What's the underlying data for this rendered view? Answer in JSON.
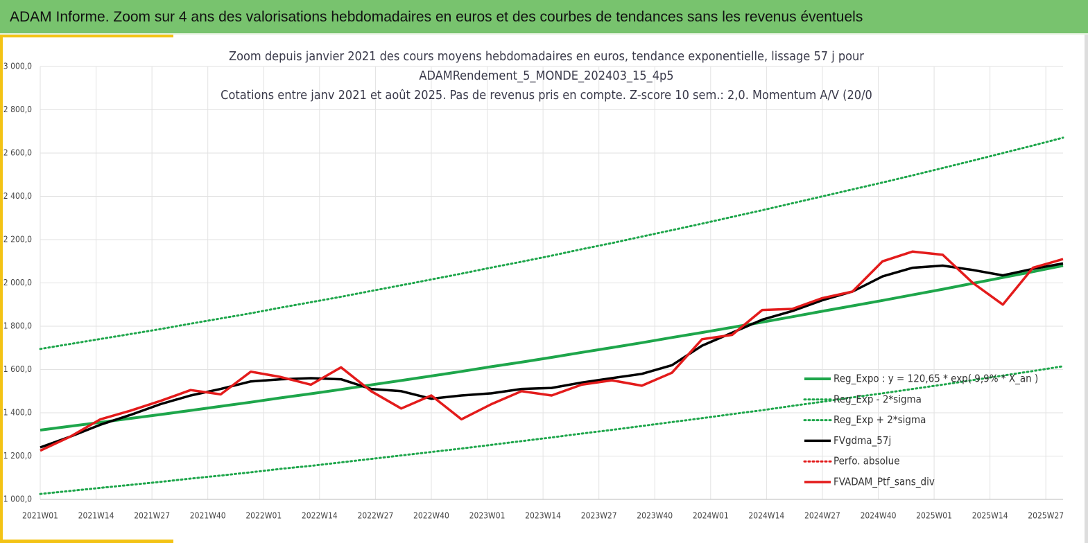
{
  "header": {
    "title": "ADAM Informe. Zoom sur 4 ans des valorisations hebdomadaires en euros et des courbes de tendances sans les revenus éventuels"
  },
  "chart_data": {
    "type": "line",
    "title": [
      "Zoom depuis janvier 2021 des cours moyens hebdomadaires  en euros, tendance exponentielle, lissage 57 j pour",
      "ADAMRendement_5_MONDE_202403_15_4p5",
      "Cotations entre janv 2021 et août 2025. Pas de revenus pris en compte. Z-score 10 sem.: 2,0. Momentum A/V (20/0"
    ],
    "x": [
      0,
      7,
      14,
      21,
      28,
      35,
      42,
      49,
      56,
      63,
      70,
      77,
      84,
      91,
      98,
      105,
      112,
      119,
      126,
      133,
      140,
      147,
      154,
      161,
      168,
      175,
      182,
      189,
      196,
      203,
      210,
      217,
      224,
      231,
      238
    ],
    "xlim": [
      0,
      238
    ],
    "xticks": [
      {
        "value": 0,
        "label": "2021W01"
      },
      {
        "value": 13,
        "label": "2021W14"
      },
      {
        "value": 26,
        "label": "2021W27"
      },
      {
        "value": 39,
        "label": "2021W40"
      },
      {
        "value": 52,
        "label": "2022W01"
      },
      {
        "value": 65,
        "label": "2022W14"
      },
      {
        "value": 78,
        "label": "2022W27"
      },
      {
        "value": 91,
        "label": "2022W40"
      },
      {
        "value": 104,
        "label": "2023W01"
      },
      {
        "value": 117,
        "label": "2023W14"
      },
      {
        "value": 130,
        "label": "2023W27"
      },
      {
        "value": 143,
        "label": "2023W40"
      },
      {
        "value": 156,
        "label": "2024W01"
      },
      {
        "value": 169,
        "label": "2024W14"
      },
      {
        "value": 182,
        "label": "2024W27"
      },
      {
        "value": 195,
        "label": "2024W40"
      },
      {
        "value": 208,
        "label": "2025W01"
      },
      {
        "value": 221,
        "label": "2025W14"
      },
      {
        "value": 234,
        "label": "2025W27"
      }
    ],
    "ylim": [
      1000,
      3000
    ],
    "yticks": [
      {
        "value": 1000,
        "label": "1 000,0"
      },
      {
        "value": 1200,
        "label": "1 200,0"
      },
      {
        "value": 1400,
        "label": "1 400,0"
      },
      {
        "value": 1600,
        "label": "1 600,0"
      },
      {
        "value": 1800,
        "label": "1 800,0"
      },
      {
        "value": 2000,
        "label": "2 000,0"
      },
      {
        "value": 2200,
        "label": "2 200,0"
      },
      {
        "value": 2400,
        "label": "2 400,0"
      },
      {
        "value": 2600,
        "label": "2 600,0"
      },
      {
        "value": 2800,
        "label": "2 800,0"
      },
      {
        "value": 3000,
        "label": "3 000,0"
      }
    ],
    "grid": true,
    "series": [
      {
        "name": "Reg_Expo : y = 120,65 * exp( 9,9% * X_an )",
        "color": "#1ea64b",
        "style": "solid",
        "values": [
          1320,
          1338,
          1356,
          1374,
          1392,
          1411,
          1430,
          1449,
          1469,
          1488,
          1508,
          1529,
          1549,
          1570,
          1591,
          1613,
          1634,
          1656,
          1679,
          1701,
          1724,
          1748,
          1771,
          1795,
          1819,
          1844,
          1869,
          1894,
          1919,
          1945,
          1971,
          1998,
          2025,
          2052,
          2080
        ]
      },
      {
        "name": "Reg_Exp - 2*sigma",
        "color": "#1ea64b",
        "style": "dotted",
        "values": [
          1025,
          1039,
          1053,
          1067,
          1081,
          1096,
          1110,
          1125,
          1141,
          1155,
          1171,
          1187,
          1203,
          1219,
          1235,
          1252,
          1269,
          1286,
          1304,
          1321,
          1339,
          1357,
          1375,
          1394,
          1412,
          1432,
          1451,
          1471,
          1490,
          1510,
          1530,
          1551,
          1572,
          1593,
          1615
        ]
      },
      {
        "name": "Reg_Exp + 2*sigma",
        "color": "#1ea64b",
        "style": "dotted",
        "values": [
          1695,
          1718,
          1741,
          1764,
          1787,
          1812,
          1836,
          1860,
          1886,
          1911,
          1936,
          1963,
          1989,
          2016,
          2043,
          2071,
          2098,
          2126,
          2156,
          2184,
          2214,
          2244,
          2274,
          2305,
          2336,
          2368,
          2400,
          2432,
          2464,
          2497,
          2531,
          2565,
          2600,
          2635,
          2671
        ]
      },
      {
        "name": "FVgdma_57j",
        "color": "#000000",
        "style": "solid",
        "values": [
          1240,
          1290,
          1345,
          1390,
          1440,
          1480,
          1510,
          1545,
          1555,
          1560,
          1555,
          1510,
          1500,
          1465,
          1480,
          1490,
          1510,
          1515,
          1540,
          1560,
          1580,
          1620,
          1710,
          1770,
          1830,
          1870,
          1920,
          1960,
          2030,
          2070,
          2080,
          2060,
          2035,
          2065,
          2090
        ]
      },
      {
        "name": "Perfo. absolue",
        "color": "#e31b1b",
        "style": "dotted",
        "values": [
          null,
          null,
          null,
          null,
          null,
          null,
          null,
          null,
          null,
          null,
          null,
          null,
          null,
          null,
          null,
          null,
          null,
          null,
          null,
          null,
          null,
          null,
          null,
          null,
          null,
          null,
          null,
          null,
          null,
          null,
          null,
          null,
          null,
          null,
          null
        ]
      },
      {
        "name": "FVADAM_Ptf_sans_div",
        "color": "#e31b1b",
        "style": "solid",
        "values": [
          1225,
          1290,
          1370,
          1410,
          1455,
          1505,
          1485,
          1590,
          1565,
          1530,
          1610,
          1500,
          1420,
          1480,
          1370,
          1440,
          1500,
          1480,
          1530,
          1550,
          1525,
          1585,
          1740,
          1760,
          1875,
          1880,
          1930,
          1960,
          2100,
          2145,
          2130,
          2000,
          1900,
          2070,
          2110
        ]
      }
    ]
  }
}
